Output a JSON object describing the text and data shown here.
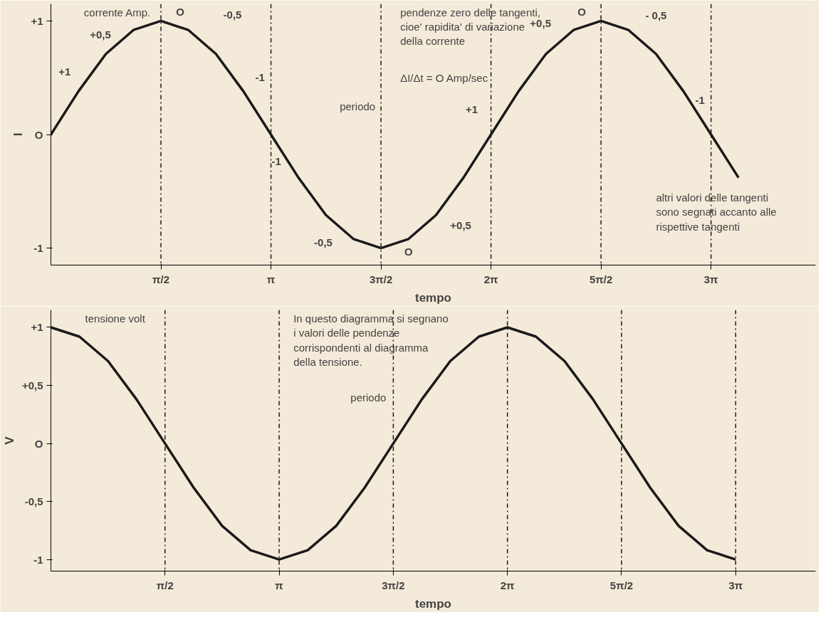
{
  "chart_data": [
    {
      "type": "line",
      "ylabel": "I",
      "xlabel": "tempo",
      "line_style": "solid",
      "color": "#1a1a1a",
      "categories": [
        null,
        null,
        null,
        null,
        "π/2",
        null,
        null,
        null,
        "π",
        null,
        null,
        null,
        "3π/2",
        null,
        null,
        null,
        "2π",
        null,
        null,
        null,
        "5π/2",
        null,
        null,
        null,
        "3π",
        null
      ],
      "values": [
        0,
        0.38,
        0.71,
        0.92,
        1,
        0.92,
        0.71,
        0.38,
        0,
        -0.38,
        -0.71,
        -0.92,
        -1,
        -0.92,
        -0.71,
        -0.38,
        0,
        0.38,
        0.71,
        0.92,
        1,
        0.92,
        0.71,
        0.38,
        0,
        -0.38
      ],
      "ylim": [
        -1.15,
        1.15
      ],
      "yticks": [
        {
          "value": 1,
          "label": "+1"
        },
        {
          "value": 0,
          "label": "O"
        },
        {
          "value": -1,
          "label": "-1"
        }
      ],
      "ref_lines": [
        {
          "axis": "x",
          "value": "π/2",
          "line_style": "dashdot"
        },
        {
          "axis": "x",
          "value": "π",
          "line_style": "dashdot"
        },
        {
          "axis": "x",
          "value": "3π/2",
          "line_style": "dashdot"
        },
        {
          "axis": "x",
          "value": "2π",
          "line_style": "dashdot"
        },
        {
          "axis": "x",
          "value": "5π/2",
          "line_style": "dashdot"
        },
        {
          "axis": "x",
          "value": "3π",
          "line_style": "dashdot"
        }
      ],
      "annotations": [
        "corrente Amp.",
        "pendenze zero delle tangenti, cioe' rapidita' di variazione della corrente",
        "ΔI/Δt = O Amp/sec",
        "periodo",
        "altri valori delle tangenti sono segnati accanto alle rispettive tangenti",
        "+1",
        "+0,5",
        "O",
        "-0,5",
        "-1",
        "-1",
        "-0,5",
        "O",
        "+0,5",
        "+1",
        "+0,5",
        "O",
        "- 0,5",
        "-1"
      ]
    },
    {
      "type": "line",
      "ylabel": "V",
      "xlabel": "tempo",
      "line_style": "solid",
      "color": "#1a1a1a",
      "categories": [
        null,
        null,
        null,
        null,
        "π/2",
        null,
        null,
        null,
        "π",
        null,
        null,
        null,
        "3π/2",
        null,
        null,
        null,
        "2π",
        null,
        null,
        null,
        "5π/2",
        null,
        null,
        null,
        "3π"
      ],
      "values": [
        1,
        0.92,
        0.71,
        0.38,
        0,
        -0.38,
        -0.71,
        -0.92,
        -1,
        -0.92,
        -0.71,
        -0.38,
        0,
        0.38,
        0.71,
        0.92,
        1,
        0.92,
        0.71,
        0.38,
        0,
        -0.38,
        -0.71,
        -0.92,
        -1
      ],
      "ylim": [
        -1.1,
        1.15
      ],
      "yticks": [
        {
          "value": 1,
          "label": "+1"
        },
        {
          "value": 0.5,
          "label": "+0,5"
        },
        {
          "value": 0,
          "label": "O"
        },
        {
          "value": -0.5,
          "label": "-0,5"
        },
        {
          "value": -1,
          "label": "-1"
        }
      ],
      "ref_lines": [
        {
          "axis": "x",
          "value": "π/2",
          "line_style": "dashdot"
        },
        {
          "axis": "x",
          "value": "π",
          "line_style": "dashdot"
        },
        {
          "axis": "x",
          "value": "3π/2",
          "line_style": "dashdot"
        },
        {
          "axis": "x",
          "value": "2π",
          "line_style": "dashdot"
        },
        {
          "axis": "x",
          "value": "5π/2",
          "line_style": "dashdot"
        },
        {
          "axis": "x",
          "value": "3π",
          "line_style": "dashdot"
        }
      ],
      "annotations": [
        "tensione volt",
        "In questo diagramma si segnano i valori delle pendenze corrispondenti al diagramma della tensione.",
        "periodo"
      ]
    }
  ]
}
